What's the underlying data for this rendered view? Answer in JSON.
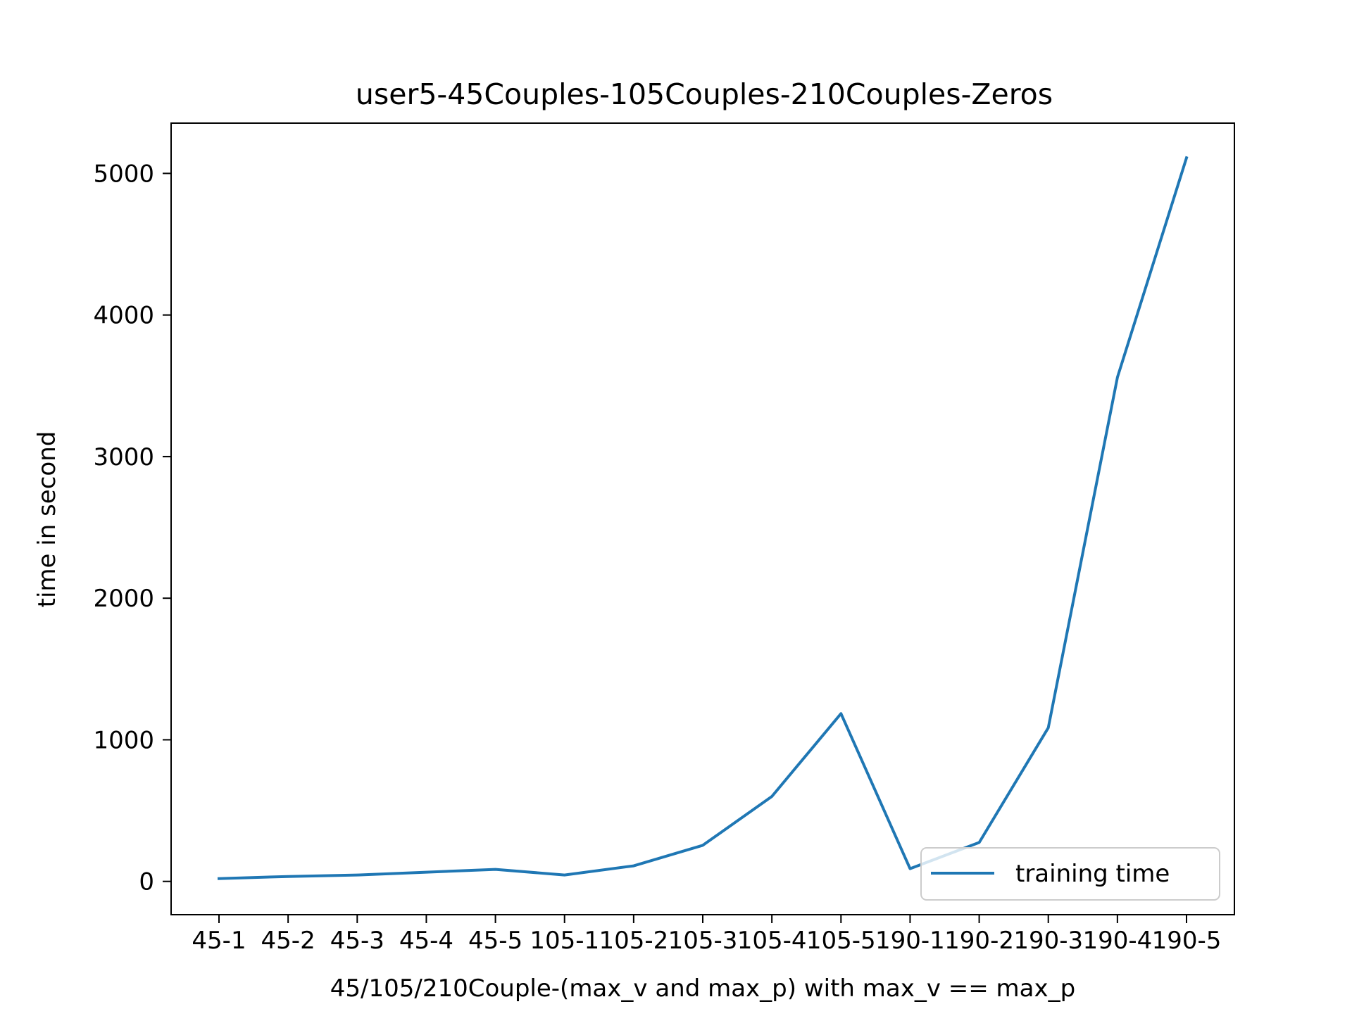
{
  "chart_data": {
    "type": "line",
    "title": "user5-45Couples-105Couples-210Couples-Zeros",
    "xlabel": "45/105/210Couple-(max_v and max_p) with max_v == max_p",
    "ylabel": "time in second",
    "categories": [
      "45-1",
      "45-2",
      "45-3",
      "45-4",
      "45-5",
      "105-1",
      "105-2",
      "105-3",
      "105-4",
      "105-5",
      "190-1",
      "190-2",
      "190-3",
      "190-4",
      "190-5"
    ],
    "series": [
      {
        "name": "training time",
        "color": "#1f77b4",
        "values": [
          20,
          35,
          45,
          65,
          85,
          45,
          110,
          255,
          600,
          1185,
          90,
          275,
          1085,
          3560,
          5110
        ]
      }
    ],
    "ylim": [
      -235,
      5355
    ],
    "yticks": [
      0,
      1000,
      2000,
      3000,
      4000,
      5000
    ],
    "ytick_labels": [
      "0",
      "1000",
      "2000",
      "3000",
      "4000",
      "5000"
    ],
    "grid": false,
    "legend_position": "lower right"
  }
}
